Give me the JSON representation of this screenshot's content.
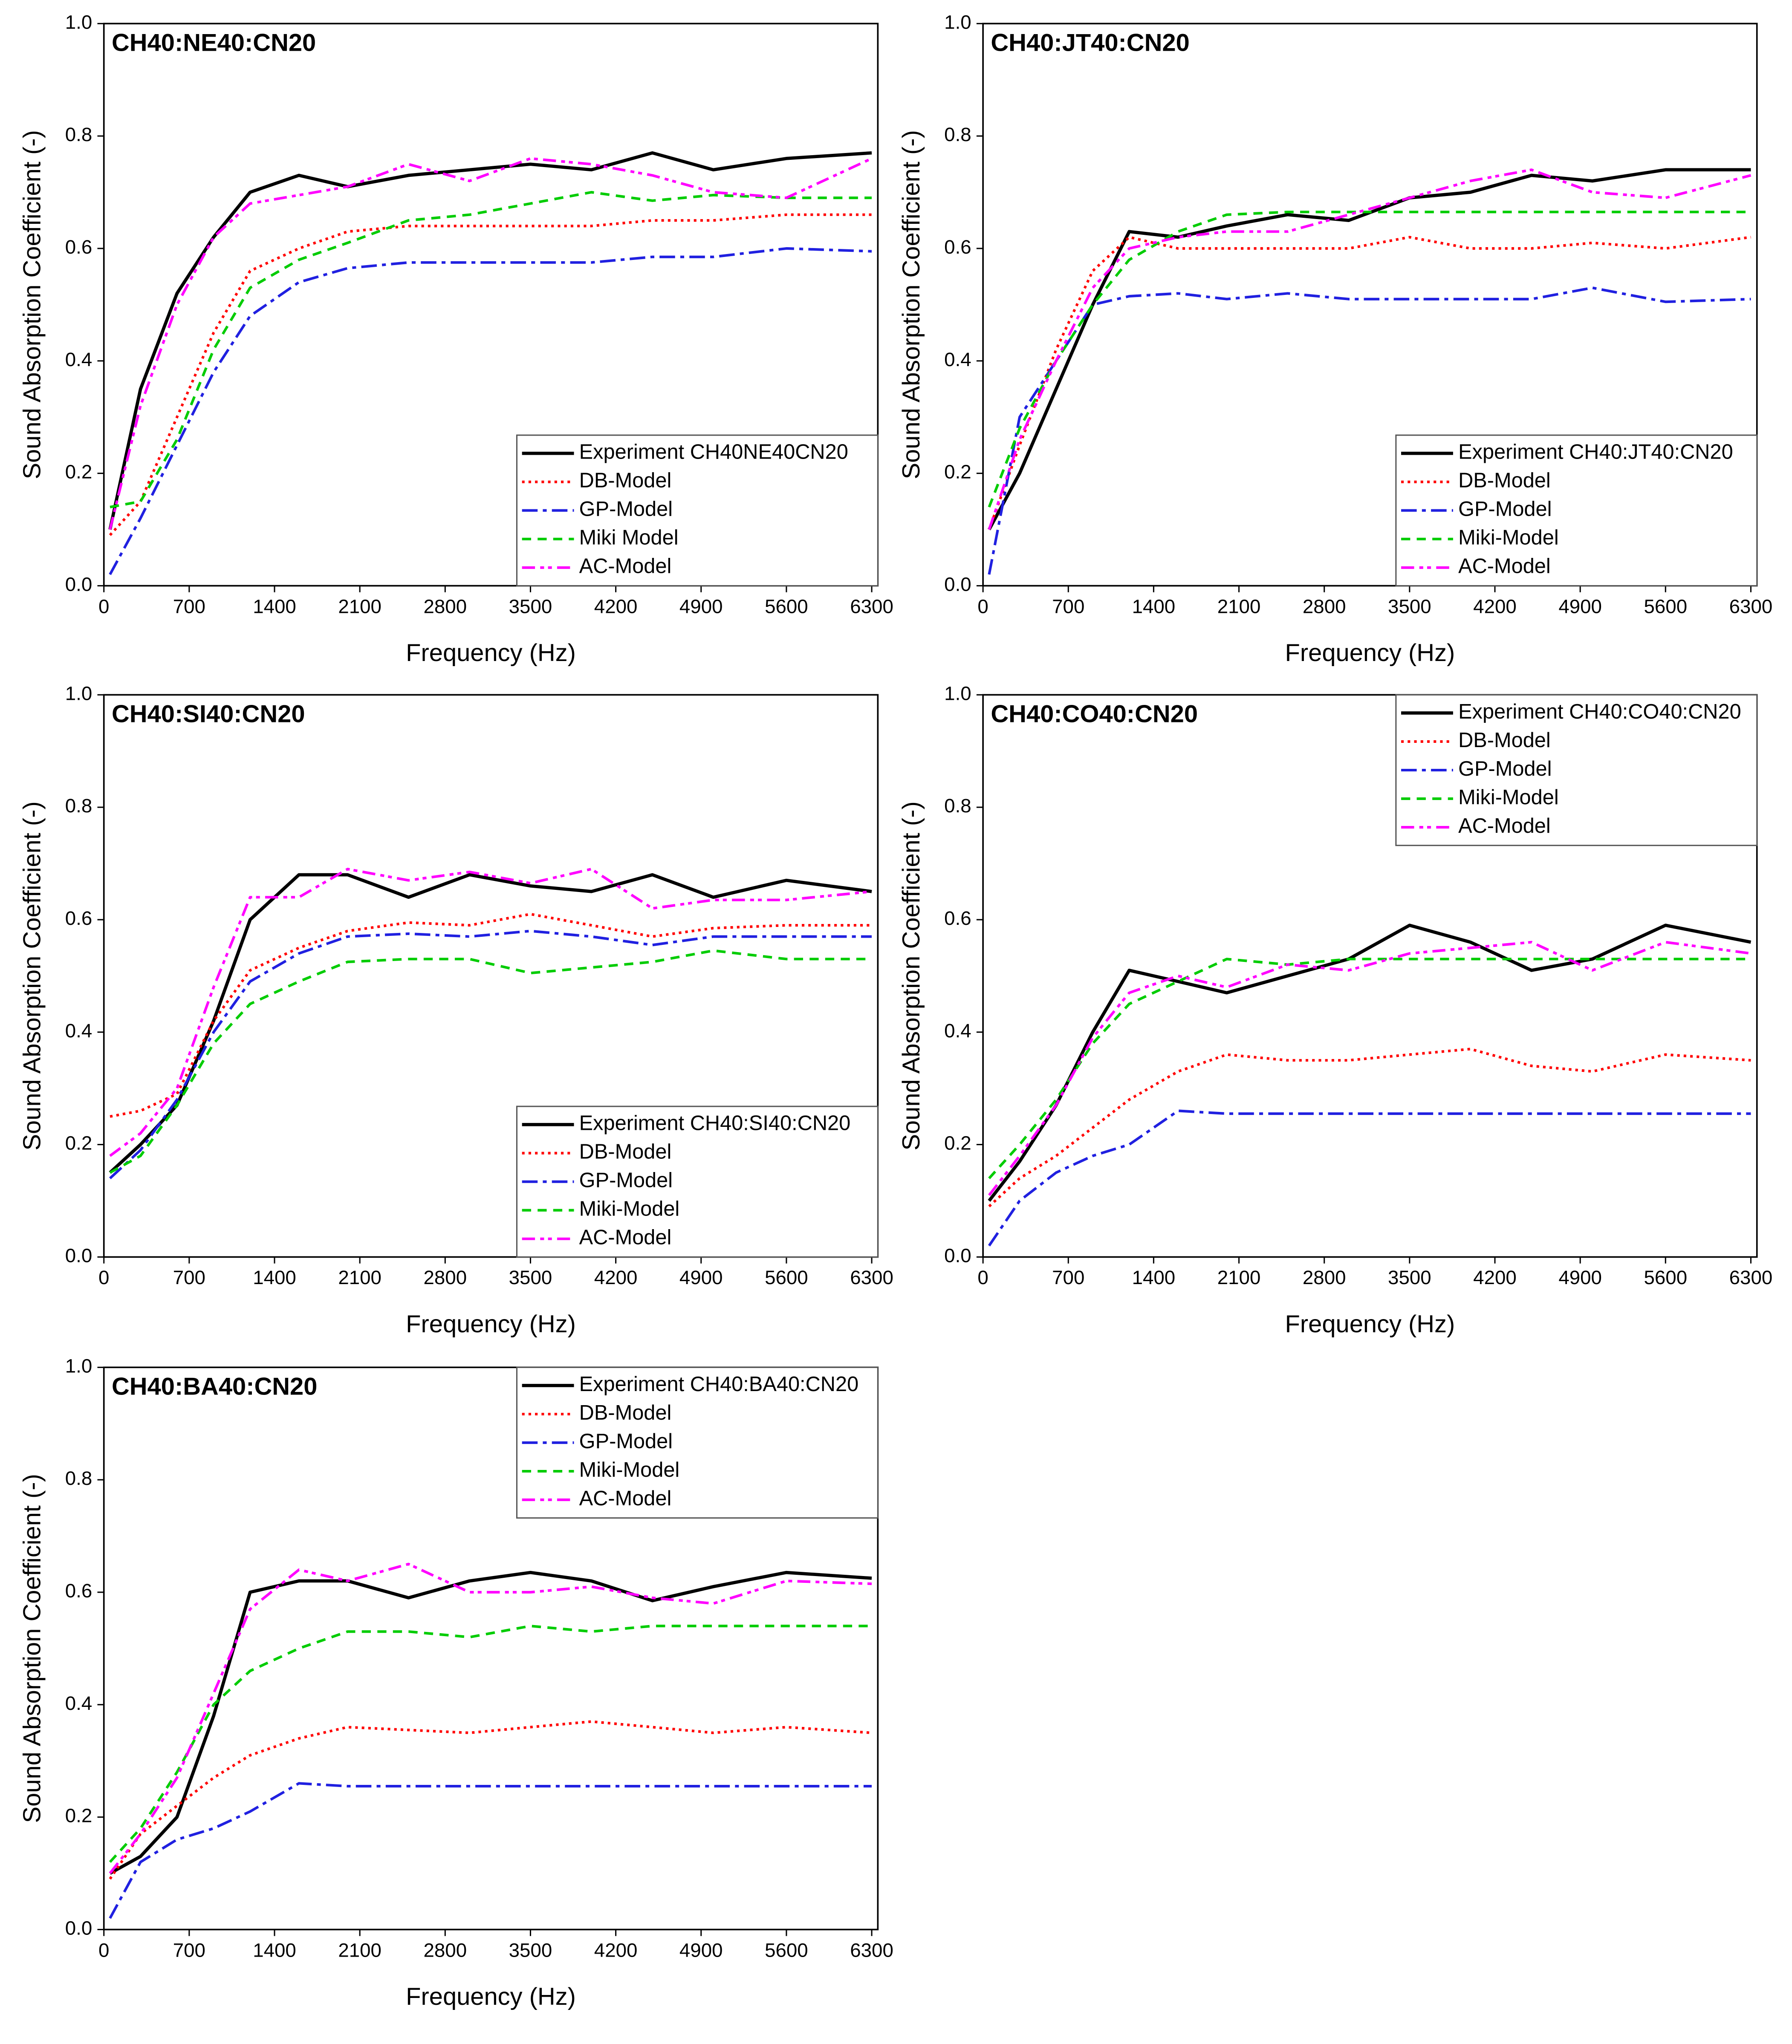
{
  "chart_data": [
    {
      "type": "line",
      "title": "CH40:NE40:CN20",
      "xlabel": "Frequency (Hz)",
      "ylabel": "Sound Absorption Coefficient (-)",
      "legend": "lower right",
      "x": [
        50,
        300,
        600,
        900,
        1200,
        1600,
        2000,
        2500,
        3000,
        3500,
        4000,
        4500,
        5000,
        5600,
        6300
      ],
      "xlim": [
        0,
        6350
      ],
      "xticks": [
        0,
        700,
        1400,
        2100,
        2800,
        3500,
        4200,
        4900,
        5600,
        6300
      ],
      "ylim": [
        0,
        1
      ],
      "yticks": [
        {
          "value": 0,
          "label": "0.0"
        },
        {
          "value": 0.2,
          "label": "0.2"
        },
        {
          "value": 0.4,
          "label": "0.4"
        },
        {
          "value": 0.6,
          "label": "0.6"
        },
        {
          "value": 0.8,
          "label": "0.8"
        },
        {
          "value": 1,
          "label": "1.0"
        }
      ],
      "series": [
        {
          "name": "Experiment CH40NE40CN20",
          "color": "#000000",
          "values": [
            0.1,
            0.35,
            0.52,
            0.62,
            0.7,
            0.73,
            0.71,
            0.73,
            0.74,
            0.75,
            0.74,
            0.77,
            0.74,
            0.76,
            0.77
          ]
        },
        {
          "name": "DB-Model",
          "color": "#ff0000",
          "values": [
            0.09,
            0.15,
            0.3,
            0.45,
            0.56,
            0.6,
            0.63,
            0.64,
            0.64,
            0.64,
            0.64,
            0.65,
            0.65,
            0.66,
            0.66
          ]
        },
        {
          "name": "GP-Model",
          "color": "#2020e0",
          "values": [
            0.02,
            0.12,
            0.25,
            0.38,
            0.48,
            0.54,
            0.565,
            0.575,
            0.575,
            0.575,
            0.575,
            0.585,
            0.585,
            0.6,
            0.595
          ]
        },
        {
          "name": "Miki Model",
          "color": "#00cc00",
          "values": [
            0.14,
            0.15,
            0.26,
            0.42,
            0.53,
            0.58,
            0.61,
            0.65,
            0.66,
            0.68,
            0.7,
            0.685,
            0.695,
            0.69,
            0.69
          ]
        },
        {
          "name": "AC-Model",
          "color": "#ff00ff",
          "values": [
            0.1,
            0.32,
            0.5,
            0.62,
            0.68,
            0.695,
            0.71,
            0.75,
            0.72,
            0.76,
            0.75,
            0.73,
            0.7,
            0.69,
            0.76
          ]
        }
      ]
    },
    {
      "type": "line",
      "title": "CH40:JT40:CN20",
      "xlabel": "Frequency (Hz)",
      "ylabel": "Sound Absorption Coefficient (-)",
      "legend": "lower right",
      "x": [
        50,
        300,
        600,
        900,
        1200,
        1600,
        2000,
        2500,
        3000,
        3500,
        4000,
        4500,
        5000,
        5600,
        6300
      ],
      "xlim": [
        0,
        6350
      ],
      "xticks": [
        0,
        700,
        1400,
        2100,
        2800,
        3500,
        4200,
        4900,
        5600,
        6300
      ],
      "ylim": [
        0,
        1
      ],
      "yticks": [
        {
          "value": 0,
          "label": "0.0"
        },
        {
          "value": 0.2,
          "label": "0.2"
        },
        {
          "value": 0.4,
          "label": "0.4"
        },
        {
          "value": 0.6,
          "label": "0.6"
        },
        {
          "value": 0.8,
          "label": "0.8"
        },
        {
          "value": 1,
          "label": "1.0"
        }
      ],
      "series": [
        {
          "name": "Experiment CH40:JT40:CN20",
          "color": "#000000",
          "values": [
            0.1,
            0.2,
            0.35,
            0.5,
            0.63,
            0.62,
            0.64,
            0.66,
            0.65,
            0.69,
            0.7,
            0.73,
            0.72,
            0.74,
            0.74
          ]
        },
        {
          "name": "DB-Model",
          "color": "#ff0000",
          "values": [
            0.1,
            0.25,
            0.42,
            0.56,
            0.62,
            0.6,
            0.6,
            0.6,
            0.6,
            0.62,
            0.6,
            0.6,
            0.61,
            0.6,
            0.62
          ]
        },
        {
          "name": "GP-Model",
          "color": "#2020e0",
          "values": [
            0.02,
            0.3,
            0.4,
            0.5,
            0.515,
            0.52,
            0.51,
            0.52,
            0.51,
            0.51,
            0.51,
            0.51,
            0.53,
            0.505,
            0.51
          ]
        },
        {
          "name": "Miki-Model",
          "color": "#00cc00",
          "values": [
            0.14,
            0.28,
            0.4,
            0.5,
            0.58,
            0.63,
            0.66,
            0.665,
            0.665,
            0.665,
            0.665,
            0.665,
            0.665,
            0.665,
            0.665
          ]
        },
        {
          "name": "AC-Model",
          "color": "#ff00ff",
          "values": [
            0.1,
            0.26,
            0.4,
            0.53,
            0.6,
            0.62,
            0.63,
            0.63,
            0.66,
            0.69,
            0.72,
            0.74,
            0.7,
            0.69,
            0.73
          ]
        }
      ]
    },
    {
      "type": "line",
      "title": "CH40:SI40:CN20",
      "xlabel": "Frequency (Hz)",
      "ylabel": "Sound Absorption Coefficient (-)",
      "legend": "lower right",
      "x": [
        50,
        300,
        600,
        900,
        1200,
        1600,
        2000,
        2500,
        3000,
        3500,
        4000,
        4500,
        5000,
        5600,
        6300
      ],
      "xlim": [
        0,
        6350
      ],
      "xticks": [
        0,
        700,
        1400,
        2100,
        2800,
        3500,
        4200,
        4900,
        5600,
        6300
      ],
      "ylim": [
        0,
        1
      ],
      "yticks": [
        {
          "value": 0,
          "label": "0.0"
        },
        {
          "value": 0.2,
          "label": "0.2"
        },
        {
          "value": 0.4,
          "label": "0.4"
        },
        {
          "value": 0.6,
          "label": "0.6"
        },
        {
          "value": 0.8,
          "label": "0.8"
        },
        {
          "value": 1,
          "label": "1.0"
        }
      ],
      "series": [
        {
          "name": "Experiment CH40:SI40:CN20",
          "color": "#000000",
          "values": [
            0.15,
            0.2,
            0.27,
            0.42,
            0.6,
            0.68,
            0.68,
            0.64,
            0.68,
            0.66,
            0.65,
            0.68,
            0.64,
            0.67,
            0.65
          ]
        },
        {
          "name": "DB-Model",
          "color": "#ff0000",
          "values": [
            0.25,
            0.26,
            0.29,
            0.42,
            0.51,
            0.55,
            0.58,
            0.595,
            0.59,
            0.61,
            0.59,
            0.57,
            0.585,
            0.59,
            0.59
          ]
        },
        {
          "name": "GP-Model",
          "color": "#2020e0",
          "values": [
            0.14,
            0.19,
            0.28,
            0.4,
            0.49,
            0.54,
            0.57,
            0.575,
            0.57,
            0.58,
            0.57,
            0.555,
            0.57,
            0.57,
            0.57
          ]
        },
        {
          "name": "Miki-Model",
          "color": "#00cc00",
          "values": [
            0.15,
            0.18,
            0.27,
            0.38,
            0.45,
            0.49,
            0.525,
            0.53,
            0.53,
            0.505,
            0.515,
            0.525,
            0.545,
            0.53,
            0.53
          ]
        },
        {
          "name": "AC-Model",
          "color": "#ff00ff",
          "values": [
            0.18,
            0.22,
            0.3,
            0.48,
            0.64,
            0.64,
            0.69,
            0.67,
            0.685,
            0.665,
            0.69,
            0.62,
            0.635,
            0.635,
            0.65
          ]
        }
      ]
    },
    {
      "type": "line",
      "title": "CH40:CO40:CN20",
      "xlabel": "Frequency (Hz)",
      "ylabel": "Sound Absorption Coefficient (-)",
      "legend": "upper right",
      "x": [
        50,
        300,
        600,
        900,
        1200,
        1600,
        2000,
        2500,
        3000,
        3500,
        4000,
        4500,
        5000,
        5600,
        6300
      ],
      "xlim": [
        0,
        6350
      ],
      "xticks": [
        0,
        700,
        1400,
        2100,
        2800,
        3500,
        4200,
        4900,
        5600,
        6300
      ],
      "ylim": [
        0,
        1
      ],
      "yticks": [
        {
          "value": 0,
          "label": "0.0"
        },
        {
          "value": 0.2,
          "label": "0.2"
        },
        {
          "value": 0.4,
          "label": "0.4"
        },
        {
          "value": 0.6,
          "label": "0.6"
        },
        {
          "value": 0.8,
          "label": "0.8"
        },
        {
          "value": 1,
          "label": "1.0"
        }
      ],
      "series": [
        {
          "name": "Experiment CH40:CO40:CN20",
          "color": "#000000",
          "values": [
            0.1,
            0.17,
            0.27,
            0.4,
            0.51,
            0.49,
            0.47,
            0.5,
            0.53,
            0.59,
            0.56,
            0.51,
            0.53,
            0.59,
            0.56
          ]
        },
        {
          "name": "DB-Model",
          "color": "#ff0000",
          "values": [
            0.09,
            0.14,
            0.18,
            0.23,
            0.28,
            0.33,
            0.36,
            0.35,
            0.35,
            0.36,
            0.37,
            0.34,
            0.33,
            0.36,
            0.35
          ]
        },
        {
          "name": "GP-Model",
          "color": "#2020e0",
          "values": [
            0.02,
            0.1,
            0.15,
            0.18,
            0.2,
            0.26,
            0.255,
            0.255,
            0.255,
            0.255,
            0.255,
            0.255,
            0.255,
            0.255,
            0.255
          ]
        },
        {
          "name": "Miki-Model",
          "color": "#00cc00",
          "values": [
            0.14,
            0.2,
            0.28,
            0.38,
            0.45,
            0.49,
            0.53,
            0.52,
            0.53,
            0.53,
            0.53,
            0.53,
            0.53,
            0.53,
            0.53
          ]
        },
        {
          "name": "AC-Model",
          "color": "#ff00ff",
          "values": [
            0.11,
            0.18,
            0.27,
            0.39,
            0.47,
            0.5,
            0.48,
            0.52,
            0.51,
            0.54,
            0.55,
            0.56,
            0.51,
            0.56,
            0.54
          ]
        }
      ]
    },
    {
      "type": "line",
      "title": "CH40:BA40:CN20",
      "xlabel": "Frequency (Hz)",
      "ylabel": "Sound Absorption Coefficient (-)",
      "legend": "upper right",
      "x": [
        50,
        300,
        600,
        900,
        1200,
        1600,
        2000,
        2500,
        3000,
        3500,
        4000,
        4500,
        5000,
        5600,
        6300
      ],
      "xlim": [
        0,
        6350
      ],
      "xticks": [
        0,
        700,
        1400,
        2100,
        2800,
        3500,
        4200,
        4900,
        5600,
        6300
      ],
      "ylim": [
        0,
        1
      ],
      "yticks": [
        {
          "value": 0,
          "label": "0.0"
        },
        {
          "value": 0.2,
          "label": "0.2"
        },
        {
          "value": 0.4,
          "label": "0.4"
        },
        {
          "value": 0.6,
          "label": "0.6"
        },
        {
          "value": 0.8,
          "label": "0.8"
        },
        {
          "value": 1,
          "label": "1.0"
        }
      ],
      "series": [
        {
          "name": "Experiment CH40:BA40:CN20",
          "color": "#000000",
          "values": [
            0.1,
            0.13,
            0.2,
            0.38,
            0.6,
            0.62,
            0.62,
            0.59,
            0.62,
            0.635,
            0.62,
            0.585,
            0.61,
            0.635,
            0.625
          ]
        },
        {
          "name": "DB-Model",
          "color": "#ff0000",
          "values": [
            0.09,
            0.17,
            0.22,
            0.27,
            0.31,
            0.34,
            0.36,
            0.355,
            0.35,
            0.36,
            0.37,
            0.36,
            0.35,
            0.36,
            0.35
          ]
        },
        {
          "name": "GP-Model",
          "color": "#2020e0",
          "values": [
            0.02,
            0.12,
            0.16,
            0.18,
            0.21,
            0.26,
            0.255,
            0.255,
            0.255,
            0.255,
            0.255,
            0.255,
            0.255,
            0.255,
            0.255
          ]
        },
        {
          "name": "Miki-Model",
          "color": "#00cc00",
          "values": [
            0.12,
            0.18,
            0.28,
            0.4,
            0.46,
            0.5,
            0.53,
            0.53,
            0.52,
            0.54,
            0.53,
            0.54,
            0.54,
            0.54,
            0.54
          ]
        },
        {
          "name": "AC-Model",
          "color": "#ff00ff",
          "values": [
            0.1,
            0.17,
            0.27,
            0.42,
            0.57,
            0.64,
            0.62,
            0.65,
            0.6,
            0.6,
            0.61,
            0.59,
            0.58,
            0.62,
            0.615
          ]
        }
      ]
    }
  ]
}
